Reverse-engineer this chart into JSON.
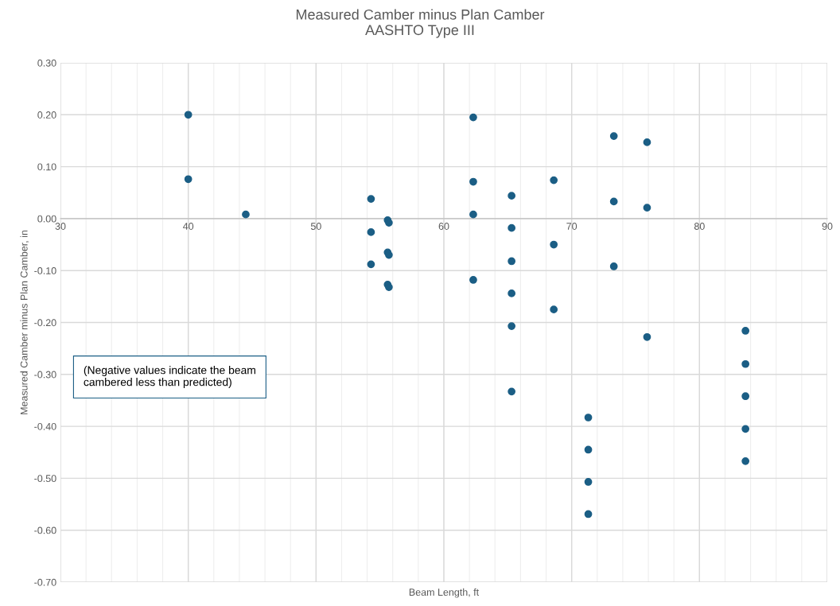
{
  "chart_data": {
    "type": "scatter",
    "title": "Measured Camber minus Plan Camber\nAASHTO Type III",
    "xlabel": "Beam Length, ft",
    "ylabel": "Measured Camber minus Plan Camber, in",
    "x": [
      40,
      40,
      44.5,
      54.3,
      54.3,
      54.3,
      55.6,
      55.7,
      55.6,
      55.7,
      55.6,
      55.7,
      62.3,
      62.3,
      62.3,
      62.3,
      65.3,
      65.3,
      65.3,
      65.3,
      65.3,
      65.3,
      68.6,
      68.6,
      68.6,
      71.3,
      71.3,
      71.3,
      71.3,
      73.3,
      73.3,
      73.3,
      75.9,
      75.9,
      75.9,
      83.6,
      83.6,
      83.6,
      83.6,
      83.6
    ],
    "series": [
      {
        "color": "#1b5e85",
        "values": [
          0.2,
          0.076,
          0.008,
          0.038,
          -0.026,
          -0.088,
          -0.003,
          -0.008,
          -0.065,
          -0.07,
          -0.127,
          -0.132,
          0.195,
          0.071,
          0.008,
          -0.118,
          0.044,
          -0.018,
          -0.082,
          -0.144,
          -0.207,
          -0.333,
          0.074,
          -0.05,
          -0.175,
          -0.383,
          -0.445,
          -0.507,
          -0.569,
          0.159,
          0.033,
          -0.092,
          0.147,
          0.021,
          -0.228,
          -0.216,
          -0.28,
          -0.342,
          -0.405,
          -0.467
        ]
      }
    ],
    "xlim": [
      30,
      90
    ],
    "xticks": [
      30,
      40,
      50,
      60,
      70,
      80,
      90
    ],
    "ylim": [
      -0.7,
      0.3
    ],
    "yticks": [
      {
        "value": -0.7,
        "label": "-0.70"
      },
      {
        "value": -0.6,
        "label": "-0.60"
      },
      {
        "value": -0.5,
        "label": "-0.50"
      },
      {
        "value": -0.4,
        "label": "-0.40"
      },
      {
        "value": -0.3,
        "label": "-0.30"
      },
      {
        "value": -0.2,
        "label": "-0.20"
      },
      {
        "value": -0.1,
        "label": "-0.10"
      },
      {
        "value": 0,
        "label": "0.00"
      },
      {
        "value": 0.1,
        "label": "0.10"
      },
      {
        "value": 0.2,
        "label": "0.20"
      },
      {
        "value": 0.3,
        "label": "0.30"
      }
    ],
    "grid": true,
    "marker": "circle",
    "legend": false,
    "annotations": [
      "(Negative values indicate the beam\ncambered less than predicted)"
    ]
  }
}
